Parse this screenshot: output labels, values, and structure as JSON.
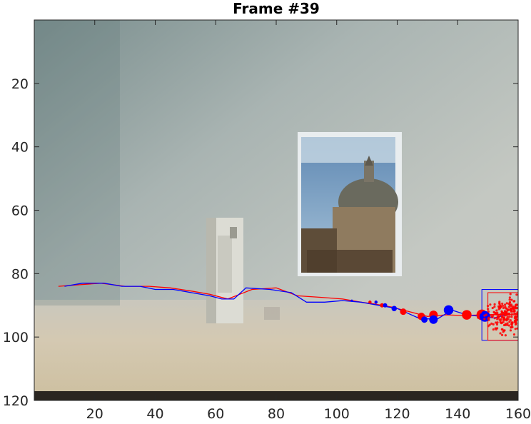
{
  "figure": {
    "title": "Frame #39",
    "colors": {
      "track_estimate": "#ff0000",
      "track_ground_truth": "#0000ff",
      "particles": "#ff0000",
      "axes": "#262626"
    }
  },
  "chart_data": {
    "type": "scatter",
    "title": "Frame #39",
    "xlabel": "",
    "ylabel": "",
    "xlim": [
      0,
      160
    ],
    "ylim": [
      120,
      0
    ],
    "y_direction": "reversed",
    "x_ticks": [
      20,
      40,
      60,
      80,
      100,
      120,
      140,
      160
    ],
    "y_ticks": [
      20,
      40,
      60,
      80,
      100,
      120
    ],
    "grid": false,
    "legend": "none",
    "background": "camera frame image of a wall with a poster of a domed building and a white box on a table",
    "series": [
      {
        "type": "line",
        "color": "#ff0000",
        "x": [
          8,
          15,
          22,
          30,
          38,
          45,
          52,
          58,
          64,
          68,
          72,
          80,
          87,
          95,
          102,
          108,
          112,
          118,
          124,
          130,
          136,
          142,
          148,
          155,
          158
        ],
        "y": [
          84,
          83.5,
          83,
          84,
          84,
          84.5,
          85.5,
          86.5,
          88,
          86.5,
          85,
          84.5,
          87,
          87.5,
          88,
          89,
          89.5,
          90.5,
          92,
          93.5,
          93,
          93.2,
          93,
          92.8,
          93
        ]
      },
      {
        "type": "line",
        "color": "#0000ff",
        "x": [
          10,
          16,
          23,
          29,
          35,
          40,
          46,
          52,
          58,
          62,
          66,
          70,
          78,
          85,
          90,
          96,
          102,
          108,
          114,
          120,
          127,
          133,
          138,
          143,
          148,
          152,
          156
        ],
        "y": [
          84,
          83,
          83,
          84,
          84,
          85,
          85,
          86,
          87,
          88,
          88,
          84.5,
          85,
          86,
          89,
          89,
          88.5,
          89,
          90,
          91,
          94,
          94.5,
          91.5,
          93,
          93.5,
          94,
          93
        ]
      },
      {
        "type": "scatter",
        "color": "#ff0000",
        "x": [
          111,
          115,
          122,
          128,
          132,
          143,
          148
        ],
        "y": [
          89,
          90,
          92,
          93.5,
          93,
          93,
          93
        ],
        "sizes": [
          3,
          4,
          6,
          7,
          8,
          9,
          10
        ]
      },
      {
        "type": "scatter",
        "color": "#0000ff",
        "x": [
          105,
          113,
          116,
          119,
          129,
          132,
          137,
          149
        ],
        "y": [
          88.5,
          89,
          90,
          91,
          94.5,
          94.5,
          91.5,
          93.5
        ],
        "sizes": [
          2,
          3,
          4,
          5,
          6,
          8,
          9,
          10
        ]
      },
      {
        "type": "particle-cloud",
        "color": "#ff0000",
        "center": [
          157,
          93
        ],
        "spread": [
          3.5,
          2.5
        ],
        "count": 260
      }
    ],
    "boxes": [
      {
        "color": "#0000ff",
        "x": [
          148,
          160
        ],
        "y": [
          85,
          101
        ]
      },
      {
        "color": "#ff0000",
        "x": [
          150,
          161
        ],
        "y": [
          86,
          101
        ]
      }
    ]
  }
}
